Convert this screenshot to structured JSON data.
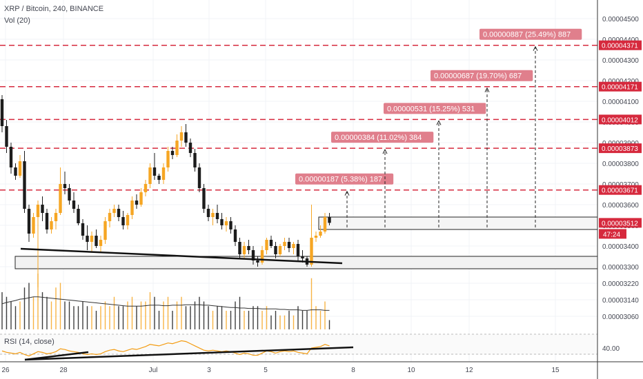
{
  "header": {
    "symbol": "XRP / Bitcoin, 240, BINANCE",
    "volume": "Vol (20)",
    "rsi": "RSI (14, close)"
  },
  "colors": {
    "up": "#f6a623",
    "down": "#1c1c1c",
    "level": "#d6293d",
    "tag": "#e66b7a",
    "label": "#e07f8c",
    "grid": "#f0f3f7",
    "rsi": "#f39c12"
  },
  "price_axis": {
    "ticks": [
      "0.00004500",
      "0.00004400",
      "0.00004300",
      "0.00004200",
      "0.00004100",
      "0.00004000",
      "0.00003900",
      "0.00003800",
      "0.00003700",
      "0.00003600",
      "0.00003500",
      "0.00003400",
      "0.00003300",
      "0.00003220",
      "0.00003140",
      "0.00003060"
    ],
    "current_price": "0.00003512",
    "countdown": "47:24"
  },
  "rsi_axis": {
    "ticks": [
      "40.00"
    ]
  },
  "time_axis": {
    "ticks": [
      "26",
      "28",
      "Jul",
      "3",
      "5",
      "8",
      "10",
      "12",
      "15"
    ]
  },
  "levels": [
    {
      "price": 4.371e-05,
      "label": "0.00004371"
    },
    {
      "price": 4.171e-05,
      "label": "0.00004171"
    },
    {
      "price": 4.012e-05,
      "label": "0.00004012"
    },
    {
      "price": 3.873e-05,
      "label": "0.00003873"
    },
    {
      "price": 3.671e-05,
      "label": "0.00003671"
    }
  ],
  "measurements": [
    {
      "text": "0.00000187 (5.38%) 187"
    },
    {
      "text": "0.00000384 (11.02%) 384"
    },
    {
      "text": "0.00000531 (15.25%) 531"
    },
    {
      "text": "0.00000687 (19.70%) 687"
    },
    {
      "text": "0.00000887 (25.49%) 887"
    }
  ],
  "chart_data": {
    "type": "candlestick",
    "title": "XRP / Bitcoin, 240, BINANCE",
    "ylim": [
      3e-05,
      4.56e-05
    ],
    "candles": [
      {
        "o": 4.11e-05,
        "h": 4.13e-05,
        "l": 3.95e-05,
        "c": 3.98e-05,
        "v": 0.8
      },
      {
        "o": 3.98e-05,
        "h": 4.01e-05,
        "l": 3.85e-05,
        "c": 3.88e-05,
        "v": 0.7
      },
      {
        "o": 3.88e-05,
        "h": 3.9e-05,
        "l": 3.75e-05,
        "c": 3.78e-05,
        "v": 0.6
      },
      {
        "o": 3.78e-05,
        "h": 3.8e-05,
        "l": 3.72e-05,
        "c": 3.74e-05,
        "v": 0.5
      },
      {
        "o": 3.74e-05,
        "h": 3.84e-05,
        "l": 3.73e-05,
        "c": 3.81e-05,
        "v": 0.6
      },
      {
        "o": 3.81e-05,
        "h": 3.86e-05,
        "l": 3.56e-05,
        "c": 3.58e-05,
        "v": 0.9
      },
      {
        "o": 3.58e-05,
        "h": 3.6e-05,
        "l": 3.42e-05,
        "c": 3.46e-05,
        "v": 1.0
      },
      {
        "o": 3.46e-05,
        "h": 3.56e-05,
        "l": 3.44e-05,
        "c": 3.54e-05,
        "v": 0.7
      },
      {
        "o": 3.54e-05,
        "h": 3.62e-05,
        "l": 3.2e-05,
        "c": 3.6e-05,
        "v": 1.2
      },
      {
        "o": 3.6e-05,
        "h": 3.64e-05,
        "l": 3.52e-05,
        "c": 3.56e-05,
        "v": 0.8
      },
      {
        "o": 3.56e-05,
        "h": 3.58e-05,
        "l": 3.46e-05,
        "c": 3.48e-05,
        "v": 0.7
      },
      {
        "o": 3.48e-05,
        "h": 3.54e-05,
        "l": 3.46e-05,
        "c": 3.52e-05,
        "v": 0.6
      },
      {
        "o": 3.52e-05,
        "h": 3.58e-05,
        "l": 3.48e-05,
        "c": 3.56e-05,
        "v": 0.9
      },
      {
        "o": 3.56e-05,
        "h": 3.78e-05,
        "l": 3.55e-05,
        "c": 3.7e-05,
        "v": 1.0
      },
      {
        "o": 3.7e-05,
        "h": 3.76e-05,
        "l": 3.65e-05,
        "c": 3.68e-05,
        "v": 0.6
      },
      {
        "o": 3.68e-05,
        "h": 3.7e-05,
        "l": 3.6e-05,
        "c": 3.62e-05,
        "v": 0.6
      },
      {
        "o": 3.62e-05,
        "h": 3.66e-05,
        "l": 3.56e-05,
        "c": 3.58e-05,
        "v": 0.5
      },
      {
        "o": 3.58e-05,
        "h": 3.6e-05,
        "l": 3.5e-05,
        "c": 3.51e-05,
        "v": 0.5
      },
      {
        "o": 3.51e-05,
        "h": 3.53e-05,
        "l": 3.43e-05,
        "c": 3.45e-05,
        "v": 0.6
      },
      {
        "o": 3.45e-05,
        "h": 3.5e-05,
        "l": 3.38e-05,
        "c": 3.42e-05,
        "v": 0.5
      },
      {
        "o": 3.42e-05,
        "h": 3.47e-05,
        "l": 3.37e-05,
        "c": 3.45e-05,
        "v": 0.5
      },
      {
        "o": 3.45e-05,
        "h": 3.48e-05,
        "l": 3.39e-05,
        "c": 3.4e-05,
        "v": 0.4
      },
      {
        "o": 3.4e-05,
        "h": 3.45e-05,
        "l": 3.37e-05,
        "c": 3.43e-05,
        "v": 0.5
      },
      {
        "o": 3.43e-05,
        "h": 3.54e-05,
        "l": 3.41e-05,
        "c": 3.52e-05,
        "v": 0.6
      },
      {
        "o": 3.52e-05,
        "h": 3.58e-05,
        "l": 3.49e-05,
        "c": 3.56e-05,
        "v": 0.5
      },
      {
        "o": 3.56e-05,
        "h": 3.6e-05,
        "l": 3.54e-05,
        "c": 3.58e-05,
        "v": 0.7
      },
      {
        "o": 3.58e-05,
        "h": 3.6e-05,
        "l": 3.52e-05,
        "c": 3.54e-05,
        "v": 0.5
      },
      {
        "o": 3.54e-05,
        "h": 3.57e-05,
        "l": 3.48e-05,
        "c": 3.5e-05,
        "v": 0.5
      },
      {
        "o": 3.5e-05,
        "h": 3.56e-05,
        "l": 3.48e-05,
        "c": 3.55e-05,
        "v": 0.6
      },
      {
        "o": 3.55e-05,
        "h": 3.64e-05,
        "l": 3.53e-05,
        "c": 3.62e-05,
        "v": 0.7
      },
      {
        "o": 3.62e-05,
        "h": 3.65e-05,
        "l": 3.58e-05,
        "c": 3.6e-05,
        "v": 0.5
      },
      {
        "o": 3.6e-05,
        "h": 3.68e-05,
        "l": 3.59e-05,
        "c": 3.66e-05,
        "v": 0.6
      },
      {
        "o": 3.66e-05,
        "h": 3.72e-05,
        "l": 3.64e-05,
        "c": 3.7e-05,
        "v": 0.6
      },
      {
        "o": 3.7e-05,
        "h": 3.8e-05,
        "l": 3.68e-05,
        "c": 3.78e-05,
        "v": 0.8
      },
      {
        "o": 3.78e-05,
        "h": 3.85e-05,
        "l": 3.72e-05,
        "c": 3.74e-05,
        "v": 0.7
      },
      {
        "o": 3.74e-05,
        "h": 3.75e-05,
        "l": 3.7e-05,
        "c": 3.72e-05,
        "v": 0.4
      },
      {
        "o": 3.72e-05,
        "h": 3.8e-05,
        "l": 3.7e-05,
        "c": 3.78e-05,
        "v": 0.6
      },
      {
        "o": 3.78e-05,
        "h": 3.88e-05,
        "l": 3.76e-05,
        "c": 3.86e-05,
        "v": 0.7
      },
      {
        "o": 3.86e-05,
        "h": 3.88e-05,
        "l": 3.82e-05,
        "c": 3.84e-05,
        "v": 0.4
      },
      {
        "o": 3.84e-05,
        "h": 3.94e-05,
        "l": 3.83e-05,
        "c": 3.91e-05,
        "v": 0.6
      },
      {
        "o": 3.91e-05,
        "h": 3.98e-05,
        "l": 3.88e-05,
        "c": 3.95e-05,
        "v": 0.7
      },
      {
        "o": 3.95e-05,
        "h": 3.99e-05,
        "l": 3.88e-05,
        "c": 3.9e-05,
        "v": 0.5
      },
      {
        "o": 3.9e-05,
        "h": 3.92e-05,
        "l": 3.83e-05,
        "c": 3.85e-05,
        "v": 0.5
      },
      {
        "o": 3.85e-05,
        "h": 3.87e-05,
        "l": 3.76e-05,
        "c": 3.78e-05,
        "v": 0.6
      },
      {
        "o": 3.78e-05,
        "h": 3.8e-05,
        "l": 3.66e-05,
        "c": 3.68e-05,
        "v": 0.7
      },
      {
        "o": 3.68e-05,
        "h": 3.7e-05,
        "l": 3.56e-05,
        "c": 3.58e-05,
        "v": 0.6
      },
      {
        "o": 3.58e-05,
        "h": 3.6e-05,
        "l": 3.52e-05,
        "c": 3.54e-05,
        "v": 0.5
      },
      {
        "o": 3.54e-05,
        "h": 3.58e-05,
        "l": 3.5e-05,
        "c": 3.56e-05,
        "v": 0.4
      },
      {
        "o": 3.56e-05,
        "h": 3.6e-05,
        "l": 3.51e-05,
        "c": 3.53e-05,
        "v": 0.5
      },
      {
        "o": 3.53e-05,
        "h": 3.56e-05,
        "l": 3.48e-05,
        "c": 3.5e-05,
        "v": 0.5
      },
      {
        "o": 3.5e-05,
        "h": 3.54e-05,
        "l": 3.47e-05,
        "c": 3.52e-05,
        "v": 0.4
      },
      {
        "o": 3.52e-05,
        "h": 3.54e-05,
        "l": 3.46e-05,
        "c": 3.48e-05,
        "v": 0.4
      },
      {
        "o": 3.48e-05,
        "h": 3.5e-05,
        "l": 3.4e-05,
        "c": 3.42e-05,
        "v": 0.6
      },
      {
        "o": 3.42e-05,
        "h": 3.44e-05,
        "l": 3.34e-05,
        "c": 3.36e-05,
        "v": 0.7
      },
      {
        "o": 3.36e-05,
        "h": 3.42e-05,
        "l": 3.34e-05,
        "c": 3.4e-05,
        "v": 0.4
      },
      {
        "o": 3.4e-05,
        "h": 3.43e-05,
        "l": 3.36e-05,
        "c": 3.38e-05,
        "v": 0.4
      },
      {
        "o": 3.38e-05,
        "h": 3.4e-05,
        "l": 3.31e-05,
        "c": 3.33e-05,
        "v": 0.5
      },
      {
        "o": 3.33e-05,
        "h": 3.35e-05,
        "l": 3.3e-05,
        "c": 3.32e-05,
        "v": 0.5
      },
      {
        "o": 3.32e-05,
        "h": 3.4e-05,
        "l": 3.31e-05,
        "c": 3.38e-05,
        "v": 0.4
      },
      {
        "o": 3.38e-05,
        "h": 3.44e-05,
        "l": 3.36e-05,
        "c": 3.43e-05,
        "v": 0.5
      },
      {
        "o": 3.43e-05,
        "h": 3.45e-05,
        "l": 3.39e-05,
        "c": 3.4e-05,
        "v": 0.3
      },
      {
        "o": 3.4e-05,
        "h": 3.42e-05,
        "l": 3.34e-05,
        "c": 3.36e-05,
        "v": 0.4
      },
      {
        "o": 3.36e-05,
        "h": 3.41e-05,
        "l": 3.35e-05,
        "c": 3.4e-05,
        "v": 0.3
      },
      {
        "o": 3.4e-05,
        "h": 3.44e-05,
        "l": 3.38e-05,
        "c": 3.42e-05,
        "v": 0.3
      },
      {
        "o": 3.42e-05,
        "h": 3.44e-05,
        "l": 3.37e-05,
        "c": 3.39e-05,
        "v": 0.4
      },
      {
        "o": 3.39e-05,
        "h": 3.42e-05,
        "l": 3.36e-05,
        "c": 3.41e-05,
        "v": 0.3
      },
      {
        "o": 3.41e-05,
        "h": 3.43e-05,
        "l": 3.33e-05,
        "c": 3.35e-05,
        "v": 0.5
      },
      {
        "o": 3.35e-05,
        "h": 3.38e-05,
        "l": 3.32e-05,
        "c": 3.34e-05,
        "v": 0.4
      },
      {
        "o": 3.34e-05,
        "h": 3.35e-05,
        "l": 3.3e-05,
        "c": 3.31e-05,
        "v": 0.4
      },
      {
        "o": 3.31e-05,
        "h": 3.6e-05,
        "l": 3.3e-05,
        "c": 3.44e-05,
        "v": 1.1
      },
      {
        "o": 3.44e-05,
        "h": 3.47e-05,
        "l": 3.42e-05,
        "c": 3.45e-05,
        "v": 0.5
      },
      {
        "o": 3.45e-05,
        "h": 3.5e-05,
        "l": 3.44e-05,
        "c": 3.47e-05,
        "v": 0.4
      },
      {
        "o": 3.47e-05,
        "h": 3.56e-05,
        "l": 3.46e-05,
        "c": 3.54e-05,
        "v": 0.6
      },
      {
        "o": 3.54e-05,
        "h": 3.56e-05,
        "l": 3.5e-05,
        "c": 3.512e-05,
        "v": 0.2
      }
    ],
    "volume_ma_ratio": [
      0.55,
      0.58,
      0.6,
      0.62,
      0.65,
      0.66,
      0.68,
      0.7,
      0.7,
      0.69,
      0.68,
      0.67,
      0.66,
      0.65,
      0.64,
      0.63,
      0.62,
      0.61,
      0.6,
      0.59,
      0.58,
      0.57,
      0.56,
      0.55,
      0.54,
      0.53,
      0.52,
      0.51,
      0.5,
      0.5,
      0.5,
      0.5,
      0.51,
      0.52,
      0.52,
      0.52,
      0.51,
      0.51,
      0.52,
      0.52,
      0.52,
      0.53,
      0.53,
      0.53,
      0.53,
      0.52,
      0.52,
      0.51,
      0.5,
      0.49,
      0.48,
      0.47,
      0.47,
      0.46,
      0.46,
      0.45,
      0.45,
      0.45,
      0.44,
      0.44,
      0.44,
      0.44,
      0.43,
      0.43,
      0.42,
      0.42,
      0.42,
      0.41,
      0.41,
      0.42,
      0.42,
      0.42,
      0.41,
      0.41
    ],
    "rsi_values": [
      35,
      33,
      32,
      31,
      33,
      30,
      28,
      31,
      34,
      33,
      31,
      32,
      34,
      38,
      37,
      35,
      34,
      33,
      31,
      30,
      31,
      30,
      31,
      34,
      36,
      37,
      35,
      34,
      36,
      38,
      37,
      39,
      41,
      44,
      43,
      42,
      44,
      46,
      45,
      47,
      49,
      48,
      45,
      42,
      39,
      36,
      35,
      36,
      35,
      34,
      35,
      34,
      32,
      30,
      32,
      31,
      29,
      29,
      32,
      35,
      34,
      32,
      34,
      35,
      34,
      35,
      33,
      32,
      31,
      39,
      40,
      41,
      44,
      42
    ],
    "support_box": {
      "top": 3.35e-05,
      "bottom": 3.29e-05
    },
    "resistance_box": {
      "top": 3.54e-05,
      "bottom": 3.48e-05
    }
  }
}
